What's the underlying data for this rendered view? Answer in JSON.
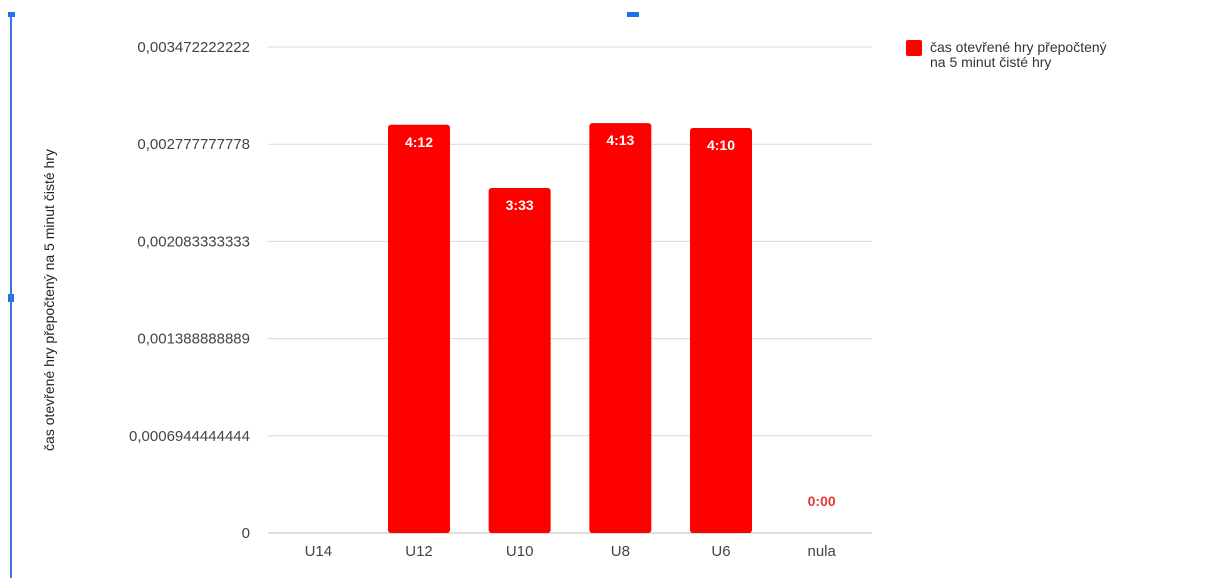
{
  "chart_data": {
    "type": "bar",
    "categories": [
      "U14",
      "U12",
      "U10",
      "U8",
      "U6",
      "nula"
    ],
    "series": [
      {
        "name": "čas otevřené hry přepočtený na 5 minut čisté hry",
        "values": [
          0,
          0.002916667,
          0.002465278,
          0.002928241,
          0.002893519,
          0
        ],
        "data_labels": [
          "",
          "4:12",
          "3:33",
          "4:13",
          "4:10",
          "0:00"
        ]
      }
    ],
    "ylabel": "čas otevřené hry přepočtený na 5 minut čisté hry",
    "xlabel": "",
    "ylim": [
      0,
      0.003472222222
    ],
    "yticks": [
      0,
      0.000694444444,
      0.001388888889,
      0.002083333333,
      0.002777777778,
      0.003472222222
    ],
    "ytick_labels": [
      "0",
      "0,0006944444444",
      "0,001388888889",
      "0,002083333333",
      "0,002777777778",
      "0,003472222222"
    ],
    "grid": true,
    "legend_position": "top-right",
    "colors": {
      "bar": "#ff0000",
      "zero_label": "#e53935",
      "bar_label": "#ffffff",
      "selection": "#1a73e8"
    }
  }
}
